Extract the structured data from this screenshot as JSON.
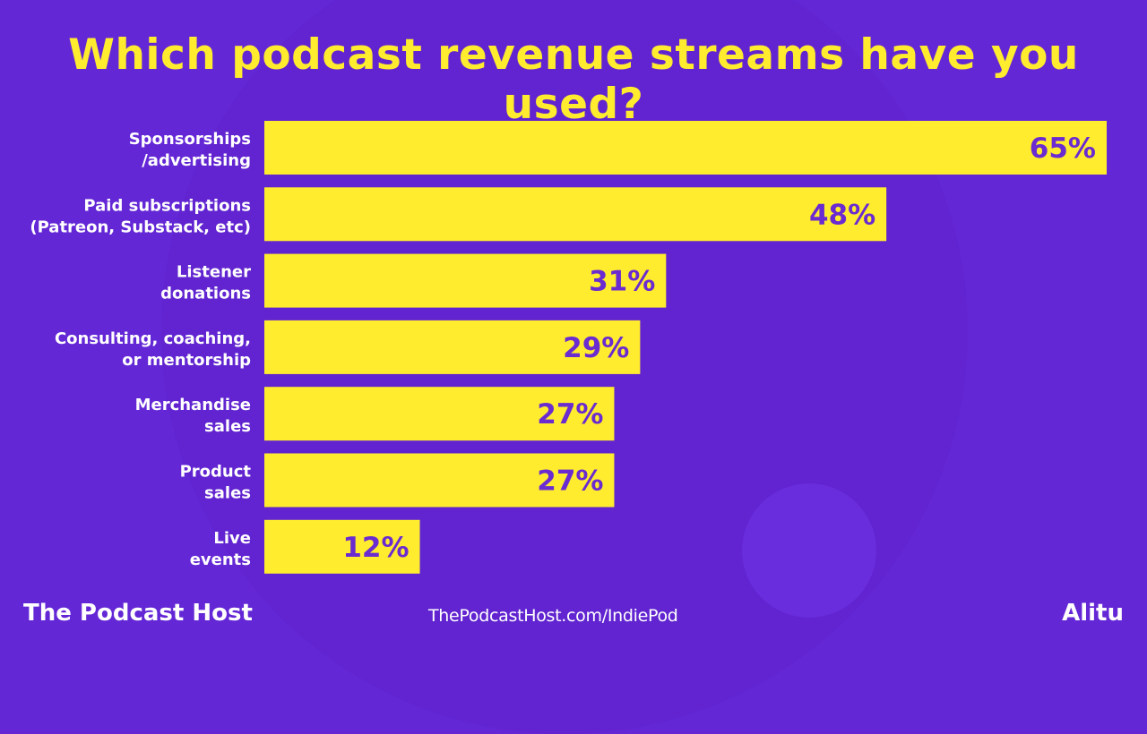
{
  "colors": {
    "background": "#6427d6",
    "bar": "#ffec2e",
    "value_text": "#6a2bd0",
    "title": "#ffec2e",
    "label": "#ffffff"
  },
  "chart_data": {
    "type": "bar",
    "orientation": "horizontal",
    "title": "Which podcast revenue streams have you used?",
    "categories": [
      [
        "Sponsorships",
        "/advertising"
      ],
      [
        "Paid subscriptions",
        "(Patreon, Substack, etc)"
      ],
      [
        "Listener",
        "donations"
      ],
      [
        "Consulting, coaching,",
        "or mentorship"
      ],
      [
        "Merchandise",
        "sales"
      ],
      [
        "Product",
        "sales"
      ],
      [
        "Live",
        "events"
      ]
    ],
    "values": [
      65,
      48,
      31,
      29,
      27,
      27,
      12
    ],
    "data_labels": [
      "65%",
      "48%",
      "31%",
      "29%",
      "27%",
      "27%",
      "12%"
    ],
    "unit": "%",
    "xlim": [
      0,
      65
    ],
    "grid": false,
    "legend": "none"
  },
  "footer": {
    "brand_left": "The Podcast Host",
    "url": "ThePodcastHost.com/IndiePod",
    "brand_right": "Alitu"
  }
}
